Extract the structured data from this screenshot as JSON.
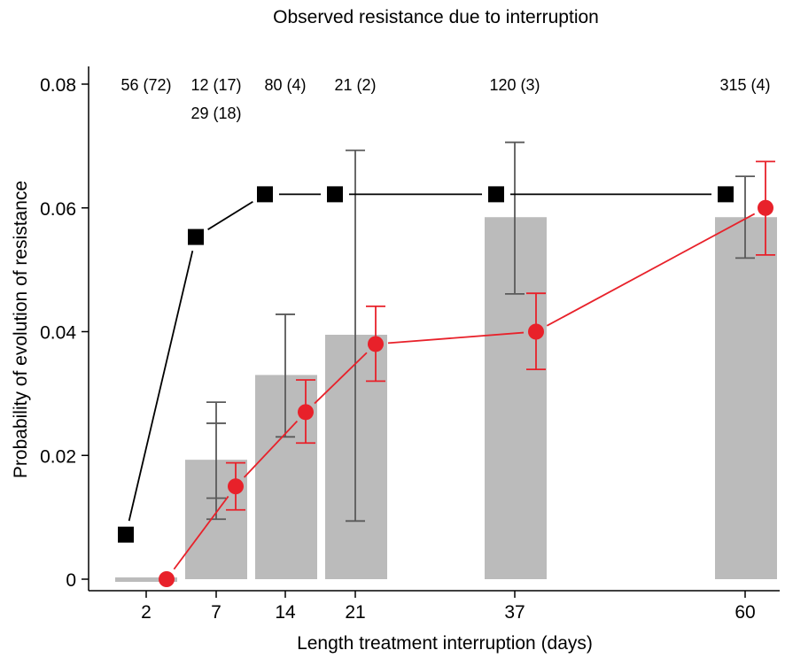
{
  "chart_data": {
    "type": "bar",
    "title": "Observed resistance due to interruption",
    "xlabel": "Length treatment interruption (days)",
    "ylabel": "Probability of evolution of resistance",
    "ylim": [
      0,
      0.082
    ],
    "y_ticks": [
      {
        "value": 0,
        "label": "0"
      },
      {
        "value": 0.02,
        "label": "0.02"
      },
      {
        "value": 0.04,
        "label": "0.04"
      },
      {
        "value": 0.06,
        "label": "0.06"
      },
      {
        "value": 0.08,
        "label": "0.08"
      }
    ],
    "categories": [
      "2",
      "7",
      "14",
      "21",
      "37",
      "60"
    ],
    "count_labels": [
      {
        "category": "2",
        "lines": [
          "56 (72)"
        ]
      },
      {
        "category": "7",
        "lines": [
          "12 (17)",
          "29 (18)"
        ]
      },
      {
        "category": "14",
        "lines": [
          "80 (4)"
        ]
      },
      {
        "category": "21",
        "lines": [
          "21 (2)"
        ]
      },
      {
        "category": "37",
        "lines": [
          "120 (3)"
        ]
      },
      {
        "category": "60",
        "lines": [
          "315 (4)"
        ]
      }
    ],
    "bars": {
      "color": "#bbbbbb",
      "values": [
        0.0003,
        0.0193,
        0.033,
        0.0395,
        0.0585,
        0.0585
      ],
      "errors": [
        null,
        {
          "low": 0.0097,
          "high": 0.0286,
          "mid": 0.0131,
          "mid2": 0.0252
        },
        {
          "low": 0.023,
          "high": 0.0428
        },
        {
          "low": 0.0094,
          "high": 0.0693
        },
        {
          "low": 0.0461,
          "high": 0.0706
        },
        {
          "low": 0.0519,
          "high": 0.0651
        }
      ]
    },
    "series": [
      {
        "color": "#000000",
        "marker": "square",
        "values": [
          0.0072,
          0.0553,
          0.0622,
          0.0622,
          0.0622,
          0.0622
        ]
      },
      {
        "color": "#e8212a",
        "marker": "circle",
        "values": [
          0.0,
          0.015,
          0.027,
          0.038,
          0.04,
          0.06
        ],
        "errors": [
          null,
          {
            "low": 0.0112,
            "high": 0.0188
          },
          {
            "low": 0.022,
            "high": 0.0322
          },
          {
            "low": 0.032,
            "high": 0.0441
          },
          {
            "low": 0.0339,
            "high": 0.0462
          },
          {
            "low": 0.0524,
            "high": 0.0675
          }
        ]
      }
    ],
    "grid": false,
    "legend": "none"
  }
}
